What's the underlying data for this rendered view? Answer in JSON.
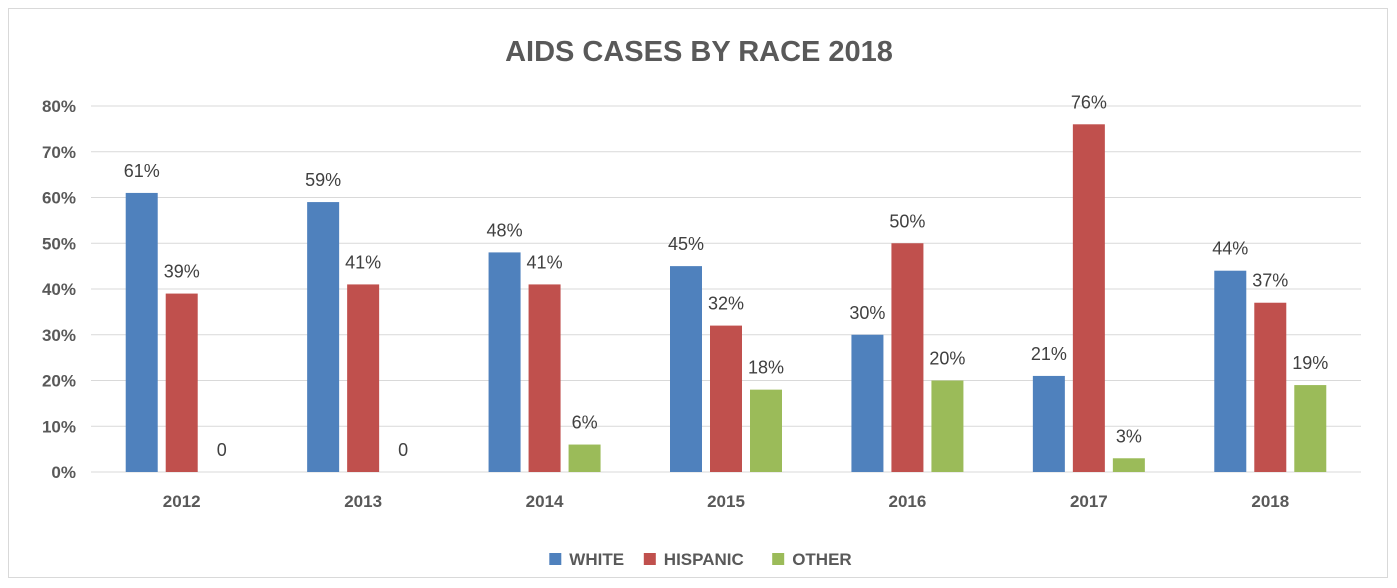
{
  "chart_data": {
    "type": "bar",
    "title": "AIDS CASES BY RACE 2018",
    "xlabel": "",
    "ylabel": "",
    "categories": [
      "2012",
      "2013",
      "2014",
      "2015",
      "2016",
      "2017",
      "2018"
    ],
    "series": [
      {
        "name": "WHITE",
        "color": "#4f81bd",
        "values": [
          61,
          59,
          48,
          45,
          30,
          21,
          44
        ],
        "labels": [
          "61%",
          "59%",
          "48%",
          "45%",
          "30%",
          "21%",
          "44%"
        ]
      },
      {
        "name": "HISPANIC",
        "color": "#c0504d",
        "values": [
          39,
          41,
          41,
          32,
          50,
          76,
          37
        ],
        "labels": [
          "39%",
          "41%",
          "41%",
          "32%",
          "50%",
          "76%",
          "37%"
        ]
      },
      {
        "name": "OTHER",
        "color": "#9bbb59",
        "values": [
          0,
          0,
          6,
          18,
          20,
          3,
          19
        ],
        "labels": [
          "0",
          "0",
          "6%",
          "18%",
          "20%",
          "3%",
          "19%"
        ]
      }
    ],
    "ylim": [
      0,
      80
    ],
    "yticks": [
      0,
      10,
      20,
      30,
      40,
      50,
      60,
      70,
      80
    ],
    "ytick_labels": [
      "0%",
      "10%",
      "20%",
      "30%",
      "40%",
      "50%",
      "60%",
      "70%",
      "80%"
    ],
    "grid": true,
    "legend": "bottom"
  }
}
